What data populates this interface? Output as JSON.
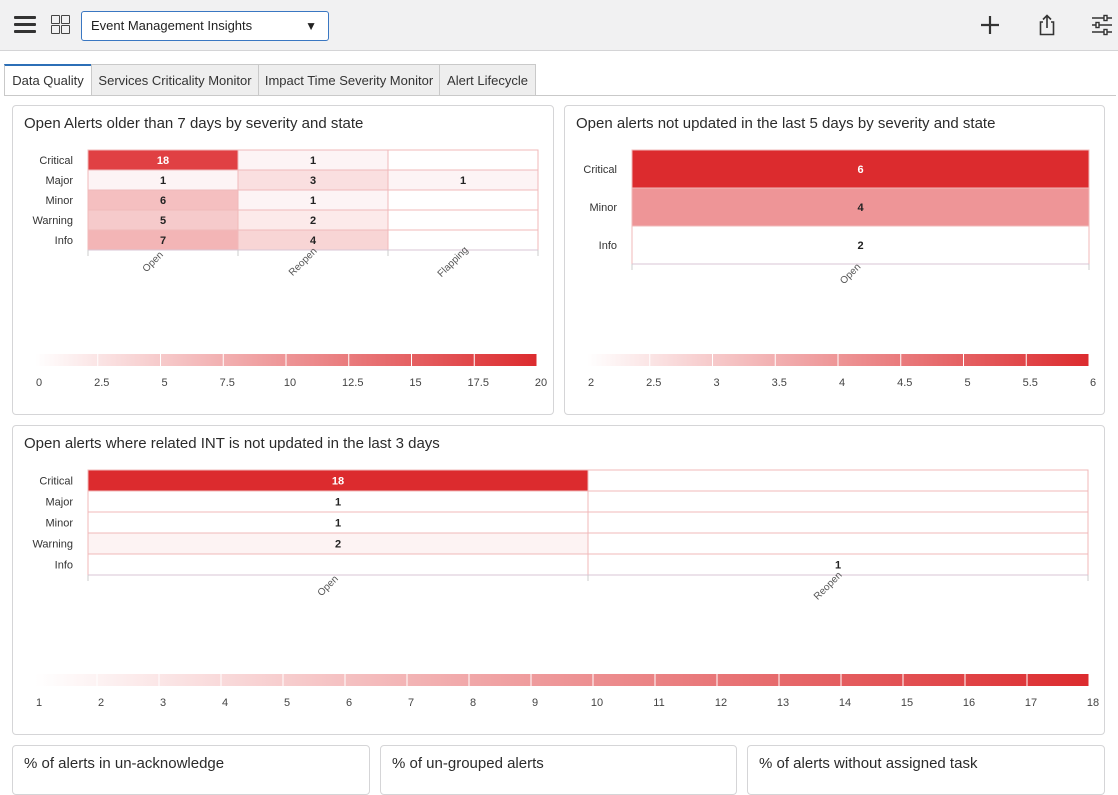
{
  "toolbar": {
    "dashboard_name": "Event Management Insights"
  },
  "tabs": [
    {
      "label": "Data Quality",
      "active": true
    },
    {
      "label": "Services Criticality Monitor",
      "active": false
    },
    {
      "label": "Impact Time Severity Monitor",
      "active": false
    },
    {
      "label": "Alert Lifecycle",
      "active": false
    }
  ],
  "widgets": {
    "w1": {
      "title": "Open Alerts older than 7 days by severity and state"
    },
    "w2": {
      "title": "Open alerts not updated in the last 5 days by severity and state"
    },
    "w3": {
      "title": "Open alerts where related INT is not updated in the last 3 days"
    },
    "w4": {
      "title": "% of alerts in un-acknowledge"
    },
    "w5": {
      "title": "% of un-grouped alerts"
    },
    "w6": {
      "title": "% of alerts without assigned task"
    }
  },
  "colors": {
    "heat_high": "#dc2b2e",
    "heat_low": "#ffffff",
    "accent": "#2c6fb7"
  },
  "chart_data": [
    {
      "type": "heatmap",
      "title": "Open Alerts older than 7 days by severity and state",
      "rows": [
        "Critical",
        "Major",
        "Minor",
        "Warning",
        "Info"
      ],
      "columns": [
        "Open",
        "Reopen",
        "Flapping"
      ],
      "values": [
        [
          18,
          1,
          null
        ],
        [
          1,
          3,
          1
        ],
        [
          6,
          1,
          null
        ],
        [
          5,
          2,
          null
        ],
        [
          7,
          4,
          null
        ]
      ],
      "scale": {
        "min": 0,
        "max": 20,
        "ticks": [
          "0",
          "2.5",
          "5",
          "7.5",
          "10",
          "12.5",
          "15",
          "17.5",
          "20"
        ]
      }
    },
    {
      "type": "heatmap",
      "title": "Open alerts not updated in the last 5 days by severity and state",
      "rows": [
        "Critical",
        "Minor",
        "Info"
      ],
      "columns": [
        "Open"
      ],
      "values": [
        [
          6
        ],
        [
          4
        ],
        [
          2
        ]
      ],
      "scale": {
        "min": 2,
        "max": 6,
        "ticks": [
          "2",
          "2.5",
          "3",
          "3.5",
          "4",
          "4.5",
          "5",
          "5.5",
          "6"
        ]
      }
    },
    {
      "type": "heatmap",
      "title": "Open alerts where related INT is not updated in the last 3 days",
      "rows": [
        "Critical",
        "Major",
        "Minor",
        "Warning",
        "Info"
      ],
      "columns": [
        "Open",
        "Reopen"
      ],
      "values": [
        [
          18,
          null
        ],
        [
          1,
          null
        ],
        [
          1,
          null
        ],
        [
          2,
          null
        ],
        [
          null,
          1
        ]
      ],
      "scale": {
        "min": 1,
        "max": 18,
        "ticks": [
          "1",
          "2",
          "3",
          "4",
          "5",
          "6",
          "7",
          "8",
          "9",
          "10",
          "11",
          "12",
          "13",
          "14",
          "15",
          "16",
          "17",
          "18"
        ]
      }
    }
  ]
}
